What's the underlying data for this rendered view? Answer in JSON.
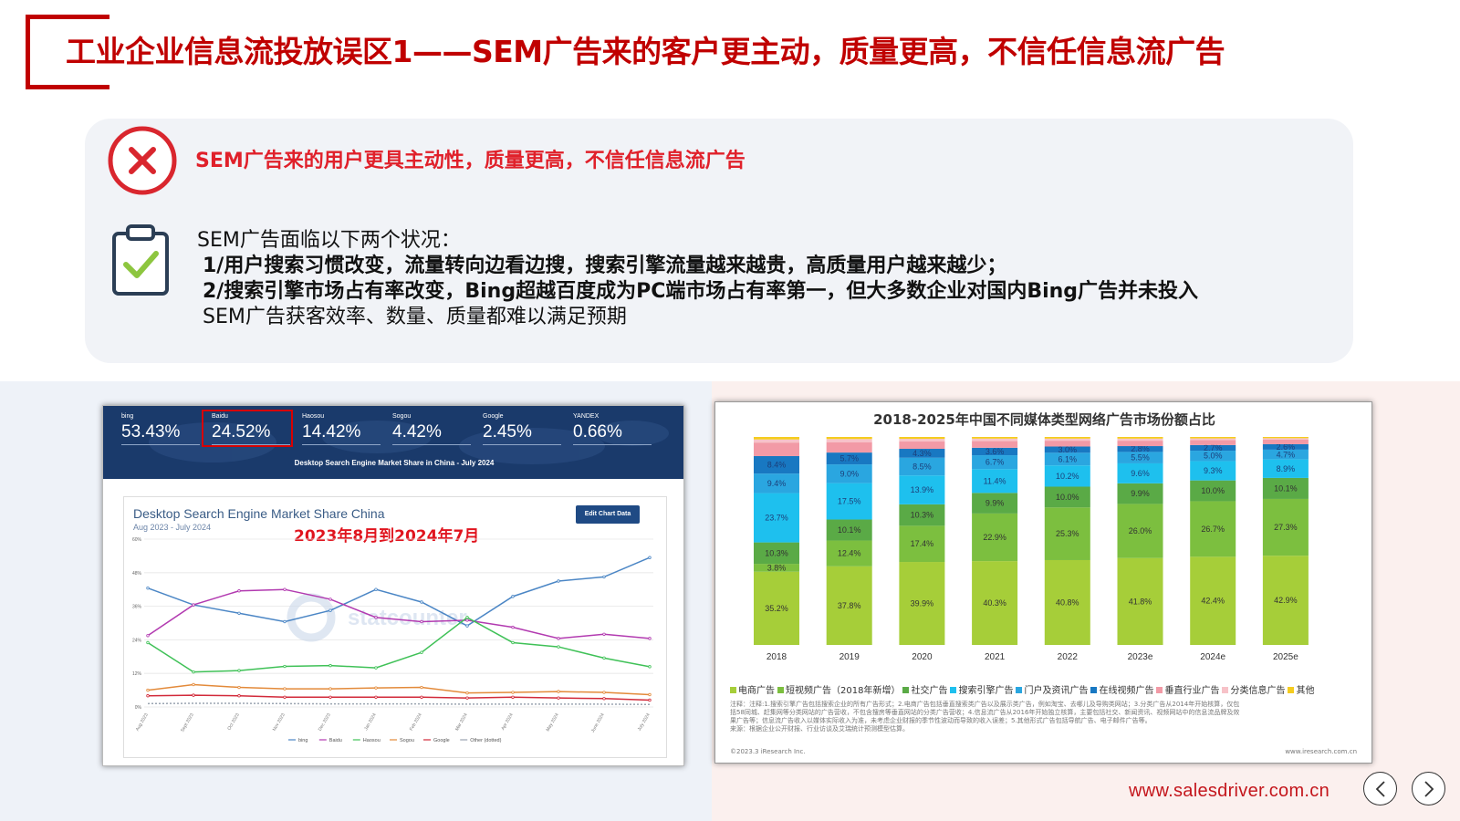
{
  "title": "工业企业信息流投放误区1——SEM广告来的客户更主动，质量更高，不信任信息流广告",
  "mistake": "SEM广告来的用户更具主动性，质量更高，不信任信息流广告",
  "body": {
    "intro": "SEM广告面临以下两个状况：",
    "point1": "1/用户搜索习惯改变，流量转向边看边搜，搜索引擎流量越来越贵，高质量用户越来越少；",
    "point2": "2/搜索引擎市场占有率改变，Bing超越百度成为PC端市场占有率第一，但大多数企业对国内Bing广告并未投入",
    "conclusion": "SEM广告获客效率、数量、质量都难以满足预期"
  },
  "statcounter": {
    "tabs": [
      {
        "name": "bing",
        "pct": "53.43%"
      },
      {
        "name": "Baidu",
        "pct": "24.52%"
      },
      {
        "name": "Haosou",
        "pct": "14.42%"
      },
      {
        "name": "Sogou",
        "pct": "4.42%"
      },
      {
        "name": "Google",
        "pct": "2.45%"
      },
      {
        "name": "YANDEX",
        "pct": "0.66%"
      }
    ],
    "caption": "Desktop Search Engine Market Share in China - July 2024",
    "chart_title": "Desktop Search Engine Market Share China",
    "chart_subtitle": "Aug 2023 - July 2024",
    "edit_button": "Edit Chart Data",
    "date_note": "2023年8月到2024年7月",
    "watermark": "statcounter"
  },
  "chart_data": [
    {
      "type": "line",
      "title": "Desktop Search Engine Market Share China",
      "subtitle": "Aug 2023 - July 2024",
      "x": [
        "Aug 2023",
        "Sept 2023",
        "Oct 2023",
        "Nov 2023",
        "Dec 2023",
        "Jan 2024",
        "Feb 2024",
        "Mar 2024",
        "Apr 2024",
        "May 2024",
        "June 2024",
        "July 2024"
      ],
      "ylim": [
        0,
        60
      ],
      "yticks": [
        "0%",
        "12%",
        "24%",
        "36%",
        "48%",
        "60%"
      ],
      "grid": true,
      "legend_position": "bottom",
      "series": [
        {
          "name": "bing",
          "color": "#4b86c5",
          "values": [
            42.5,
            36.5,
            33.5,
            30.5,
            34.5,
            42,
            37.5,
            29,
            39.5,
            45,
            46.5,
            53.4
          ]
        },
        {
          "name": "Baidu",
          "color": "#b23ab0",
          "values": [
            25.5,
            36.5,
            41.5,
            42,
            38.5,
            32,
            30.5,
            31,
            28.5,
            24.5,
            26,
            24.5
          ]
        },
        {
          "name": "Haosou",
          "color": "#3fc157",
          "values": [
            23,
            12.5,
            13,
            14.5,
            14.8,
            14,
            19.5,
            32,
            23,
            21.5,
            17.5,
            14.4
          ]
        },
        {
          "name": "Sogou",
          "color": "#e38a3a",
          "values": [
            6,
            8,
            7,
            6.5,
            6.5,
            6.8,
            7,
            5,
            5.2,
            5.5,
            5.2,
            4.4
          ]
        },
        {
          "name": "Google",
          "color": "#d22a3a",
          "values": [
            4,
            4.2,
            4,
            3.5,
            3.5,
            3.5,
            3.5,
            3.2,
            3.5,
            3.2,
            3,
            2.45
          ]
        },
        {
          "name": "Other (dotted)",
          "color": "#9aa4b0",
          "values": [
            1.2,
            1.3,
            1.3,
            1.2,
            1.1,
            1.1,
            1.1,
            1,
            1,
            1,
            1,
            0.9
          ]
        }
      ]
    },
    {
      "type": "bar",
      "title": "2018-2025年中国不同媒体类型网络广告市场份额占比",
      "categories": [
        "2018",
        "2019",
        "2020",
        "2021",
        "2022",
        "2023e",
        "2024e",
        "2025e"
      ],
      "ylim": [
        0,
        100
      ],
      "stacked": true,
      "series": [
        {
          "name": "电商广告",
          "color": "#a6ce39",
          "values": [
            35.2,
            37.8,
            39.9,
            40.3,
            40.8,
            41.8,
            42.4,
            42.9
          ]
        },
        {
          "name": "短视频广告（2018年新增）",
          "color": "#7cbf3f",
          "values": [
            3.8,
            12.4,
            17.4,
            22.9,
            25.3,
            26.0,
            26.7,
            27.3
          ]
        },
        {
          "name": "社交广告",
          "color": "#5aaa46",
          "values": [
            10.3,
            10.1,
            10.3,
            9.9,
            10.0,
            9.9,
            10.0,
            10.1
          ]
        },
        {
          "name": "搜索引擎广告",
          "color": "#1ec0ee",
          "values": [
            23.7,
            17.5,
            13.9,
            11.4,
            10.2,
            9.6,
            9.3,
            8.9
          ]
        },
        {
          "name": "门户及资讯广告",
          "color": "#2aa6e0",
          "values": [
            9.4,
            9.0,
            8.5,
            6.7,
            6.1,
            5.5,
            5.0,
            4.7
          ]
        },
        {
          "name": "在线视频广告",
          "color": "#1878c2",
          "values": [
            8.4,
            5.7,
            4.3,
            3.6,
            3.0,
            2.8,
            2.7,
            2.6
          ]
        },
        {
          "name": "垂直行业广告",
          "color": "#f29aa6",
          "values": [
            6.5,
            5.0,
            3.5,
            3.2,
            2.8,
            2.6,
            2.4,
            2.2
          ]
        },
        {
          "name": "分类信息广告",
          "color": "#f7c2c8",
          "values": [
            1.5,
            1.5,
            1.3,
            1.2,
            1.0,
            1.0,
            0.8,
            0.7
          ]
        },
        {
          "name": "其他",
          "color": "#f5cc1f",
          "values": [
            1.2,
            1.0,
            0.9,
            0.8,
            0.8,
            0.8,
            0.7,
            0.6
          ]
        }
      ]
    }
  ],
  "iresearch": {
    "note_line1": "注释：注释:1.搜索引擎广告包括搜索企业的所有广告形式；2.电商广告包括垂直搜索类广告以及展示类广告，例如淘宝、去哪儿及导购类网站；3.分类广告从2014年开始核算，仅包",
    "note_line2": "括58同城、赶集网等分类网站的广告营收，不包含搜房等垂直网站的分类广告营收；4.信息流广告从2016年开始独立核算，主要包括社交、新闻资讯、视频网站中的信息流品牌及效",
    "note_line3": "果广告等；信息流广告收入以媒体实际收入为准，未考虑企业财报的季节性波动而导致的收入误差；5.其他形式广告包括导航广告、电子邮件广告等。",
    "note_line4": "来源：根据企业公开财报、行业访谈及艾瑞统计预测模型估算。",
    "copyright": "©2023.3 iResearch Inc.",
    "site": "www.iresearch.com.cn"
  },
  "footer": {
    "url": "www.salesdriver.com.cn"
  },
  "colors": {
    "brand_red": "#c00000",
    "panel_bg": "#f1f3f7"
  }
}
